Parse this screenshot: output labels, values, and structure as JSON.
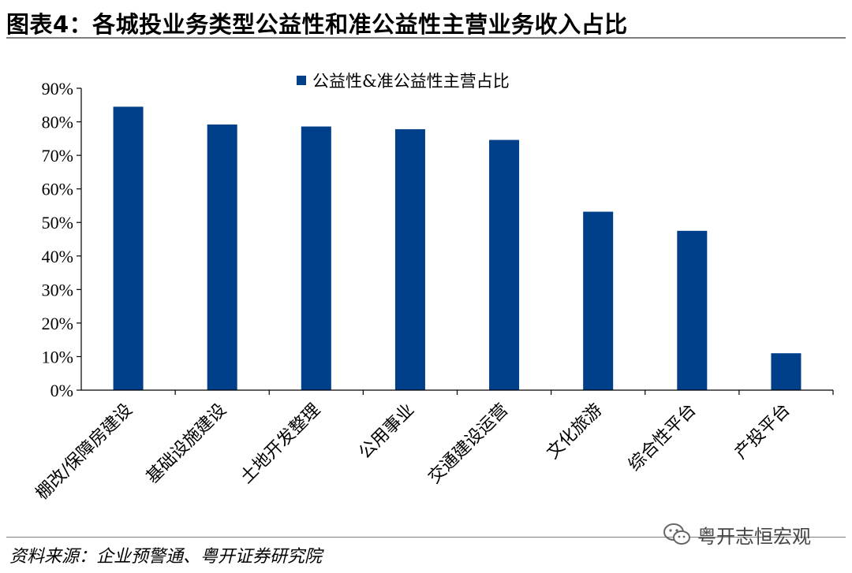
{
  "header": {
    "title": "图表4：各城投业务类型公益性和准公益性主营业务收入占比"
  },
  "chart_data": {
    "type": "bar",
    "title": "",
    "xlabel": "",
    "ylabel": "",
    "categories": [
      "棚改/保障房建设",
      "基础设施建设",
      "土地开发整理",
      "公用事业",
      "交通建设运营",
      "文化旅游",
      "综合性平台",
      "产投平台"
    ],
    "series": [
      {
        "name": "公益性&准公益性主营占比",
        "values": [
          84.5,
          79.2,
          78.6,
          77.8,
          74.6,
          53.2,
          47.5,
          11.0
        ]
      }
    ],
    "ylim": [
      0,
      90
    ],
    "yticks": [
      "0%",
      "10%",
      "20%",
      "30%",
      "40%",
      "50%",
      "60%",
      "70%",
      "80%",
      "90%"
    ],
    "legend_position": "top-center",
    "grid": false,
    "bar_color": "#003f8a"
  },
  "footer": {
    "source": "资料来源：企业预警通、粤开证券研究院",
    "watermark": "粤开志恒宏观",
    "watermark_icon": "wechat-icon"
  }
}
